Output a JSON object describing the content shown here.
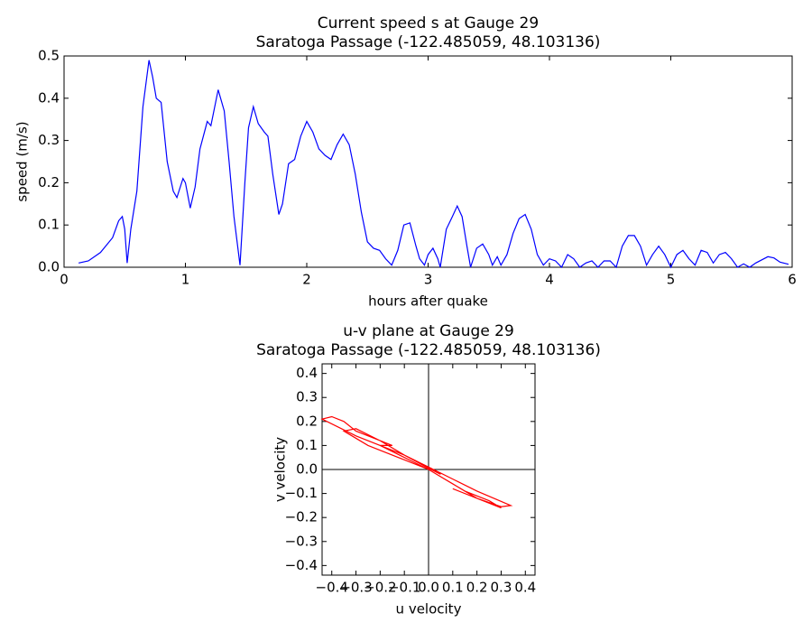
{
  "chart_data": [
    {
      "type": "line",
      "title": "Current speed s at Gauge 29",
      "subtitle": "Saratoga Passage  (-122.485059, 48.103136)",
      "xlabel": "hours after quake",
      "ylabel": "speed (m/s)",
      "xlim": [
        0,
        6
      ],
      "ylim": [
        0,
        0.5
      ],
      "xticks": [
        0,
        1,
        2,
        3,
        4,
        5,
        6
      ],
      "yticks": [
        {
          "value": 0,
          "label": "0.0"
        },
        0.1,
        0.2,
        0.3,
        0.4,
        0.5
      ],
      "x": [
        0.12,
        0.2,
        0.3,
        0.4,
        0.45,
        0.48,
        0.5,
        0.52,
        0.55,
        0.6,
        0.65,
        0.7,
        0.73,
        0.76,
        0.8,
        0.85,
        0.9,
        0.93,
        0.98,
        1.0,
        1.04,
        1.08,
        1.12,
        1.18,
        1.21,
        1.27,
        1.32,
        1.36,
        1.4,
        1.45,
        1.49,
        1.52,
        1.56,
        1.6,
        1.65,
        1.68,
        1.72,
        1.77,
        1.8,
        1.85,
        1.9,
        1.95,
        2.0,
        2.05,
        2.1,
        2.15,
        2.2,
        2.25,
        2.3,
        2.35,
        2.4,
        2.45,
        2.5,
        2.55,
        2.6,
        2.65,
        2.7,
        2.75,
        2.8,
        2.85,
        2.9,
        2.93,
        2.97,
        3.0,
        3.04,
        3.08,
        3.1,
        3.15,
        3.2,
        3.24,
        3.28,
        3.32,
        3.35,
        3.4,
        3.45,
        3.5,
        3.53,
        3.57,
        3.6,
        3.65,
        3.7,
        3.75,
        3.8,
        3.85,
        3.9,
        3.95,
        4.0,
        4.05,
        4.1,
        4.15,
        4.2,
        4.25,
        4.3,
        4.35,
        4.4,
        4.45,
        4.5,
        4.55,
        4.6,
        4.65,
        4.7,
        4.75,
        4.8,
        4.85,
        4.9,
        4.95,
        5.0,
        5.05,
        5.1,
        5.15,
        5.2,
        5.25,
        5.3,
        5.35,
        5.4,
        5.45,
        5.5,
        5.55,
        5.6,
        5.65,
        5.7,
        5.8,
        5.85,
        5.9,
        5.97
      ],
      "series": [
        {
          "name": "speed",
          "color": "#0000ff",
          "values": [
            0.01,
            0.015,
            0.035,
            0.07,
            0.11,
            0.12,
            0.09,
            0.01,
            0.09,
            0.18,
            0.38,
            0.49,
            0.45,
            0.4,
            0.39,
            0.25,
            0.18,
            0.165,
            0.21,
            0.2,
            0.14,
            0.19,
            0.28,
            0.345,
            0.335,
            0.42,
            0.37,
            0.25,
            0.12,
            0.005,
            0.2,
            0.33,
            0.38,
            0.34,
            0.32,
            0.31,
            0.22,
            0.125,
            0.15,
            0.245,
            0.255,
            0.31,
            0.345,
            0.32,
            0.28,
            0.265,
            0.255,
            0.29,
            0.315,
            0.29,
            0.22,
            0.13,
            0.06,
            0.045,
            0.04,
            0.02,
            0.005,
            0.04,
            0.1,
            0.105,
            0.05,
            0.02,
            0.005,
            0.03,
            0.045,
            0.02,
            0.0,
            0.09,
            0.12,
            0.145,
            0.12,
            0.05,
            0.0,
            0.045,
            0.055,
            0.03,
            0.005,
            0.025,
            0.005,
            0.03,
            0.08,
            0.115,
            0.125,
            0.09,
            0.03,
            0.005,
            0.02,
            0.015,
            0.0,
            0.03,
            0.02,
            0.0,
            0.01,
            0.015,
            0.0,
            0.015,
            0.015,
            0.0,
            0.05,
            0.075,
            0.075,
            0.05,
            0.005,
            0.03,
            0.05,
            0.03,
            0.0,
            0.03,
            0.04,
            0.02,
            0.005,
            0.04,
            0.035,
            0.01,
            0.03,
            0.035,
            0.02,
            0.0,
            0.008,
            0.0,
            0.01,
            0.025,
            0.022,
            0.012,
            0.007
          ]
        }
      ]
    },
    {
      "type": "line",
      "title": "u-v plane at Gauge 29",
      "subtitle": "Saratoga Passage  (-122.485059, 48.103136)",
      "xlabel": "u velocity",
      "ylabel": "v velocity",
      "xlim": [
        -0.44,
        0.44
      ],
      "ylim": [
        -0.44,
        0.44
      ],
      "xticks": [
        {
          "value": -0.4,
          "label": "−0.4"
        },
        {
          "value": -0.3,
          "label": "−0.3"
        },
        {
          "value": -0.2,
          "label": "−0.2"
        },
        {
          "value": -0.1,
          "label": "−0.1"
        },
        {
          "value": 0,
          "label": "0.0"
        },
        0.1,
        0.2,
        0.3,
        0.4
      ],
      "yticks": [
        {
          "value": -0.4,
          "label": "−0.4"
        },
        {
          "value": -0.3,
          "label": "−0.3"
        },
        {
          "value": -0.2,
          "label": "−0.2"
        },
        {
          "value": -0.1,
          "label": "−0.1"
        },
        {
          "value": 0,
          "label": "0.0"
        },
        0.1,
        0.2,
        0.3,
        0.4
      ],
      "x": [
        0.1,
        0.2,
        0.3,
        0.25,
        0.15,
        0.05,
        0,
        -0.1,
        -0.2,
        -0.3,
        -0.44,
        -0.4,
        -0.35,
        -0.3,
        -0.2,
        -0.15,
        -0.2,
        -0.1,
        0,
        0.1,
        0.2,
        0.34,
        0.3,
        0.2,
        0.1,
        0,
        -0.1,
        -0.25,
        -0.35,
        -0.3,
        -0.2,
        -0.1,
        0,
        0.05
      ],
      "series": [
        {
          "name": "v velocity",
          "color": "#ff0000",
          "values": [
            -0.08,
            -0.12,
            -0.16,
            -0.13,
            -0.09,
            -0.03,
            0,
            0.05,
            0.1,
            0.14,
            0.21,
            0.22,
            0.2,
            0.16,
            0.12,
            0.1,
            0.1,
            0.06,
            0.01,
            -0.04,
            -0.09,
            -0.15,
            -0.155,
            -0.12,
            -0.06,
            0,
            0.04,
            0.1,
            0.16,
            0.17,
            0.12,
            0.06,
            0.005,
            -0.02
          ]
        }
      ]
    }
  ]
}
